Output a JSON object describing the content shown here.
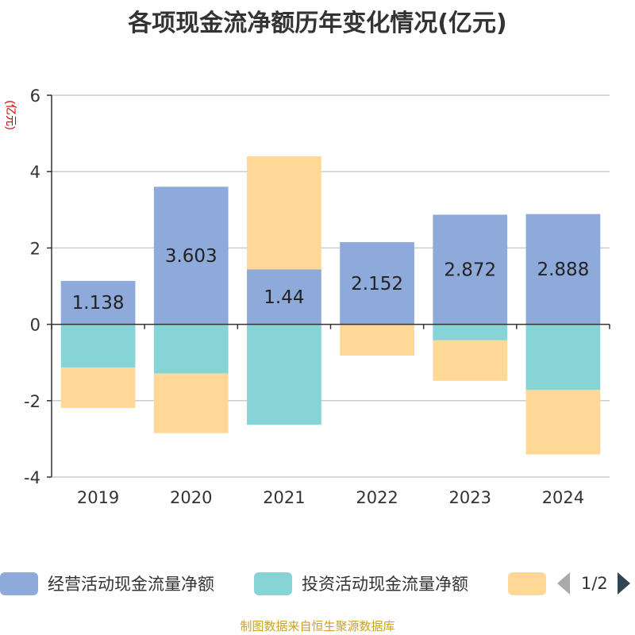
{
  "title": "各项现金流净额历年变化情况(亿元)",
  "footer": "制图数据来自恒生聚源数据库",
  "legend": {
    "items": [
      {
        "label": "经营活动现金流量净额",
        "color": "#8eaadb"
      },
      {
        "label": "投资活动现金流量净额",
        "color": "#86d4d6"
      },
      {
        "label": "",
        "color": "#ffd897"
      }
    ],
    "page_indicator": "1/2"
  },
  "chart_data": {
    "type": "bar",
    "stacked": true,
    "categories": [
      "2019",
      "2020",
      "2021",
      "2022",
      "2023",
      "2024"
    ],
    "ylabel": "(亿元)",
    "ylim": [
      -4,
      6
    ],
    "yticks": [
      -4,
      -2,
      0,
      2,
      4,
      6
    ],
    "grid": true,
    "legend_position": "bottom",
    "series": [
      {
        "name": "经营活动现金流量净额",
        "color": "#8eaadb",
        "values": [
          1.138,
          3.603,
          1.44,
          2.152,
          2.872,
          2.888
        ],
        "labels": [
          "1.138",
          "3.603",
          "1.44",
          "2.152",
          "2.872",
          "2.888"
        ]
      },
      {
        "name": "投资活动现金流量净额",
        "color": "#86d4d6",
        "values": [
          -1.13,
          -1.29,
          -2.63,
          0,
          -0.42,
          -1.72
        ]
      },
      {
        "color": "#ffd897",
        "values": [
          -1.06,
          -1.56,
          2.96,
          -0.82,
          -1.06,
          -1.69
        ]
      }
    ]
  }
}
